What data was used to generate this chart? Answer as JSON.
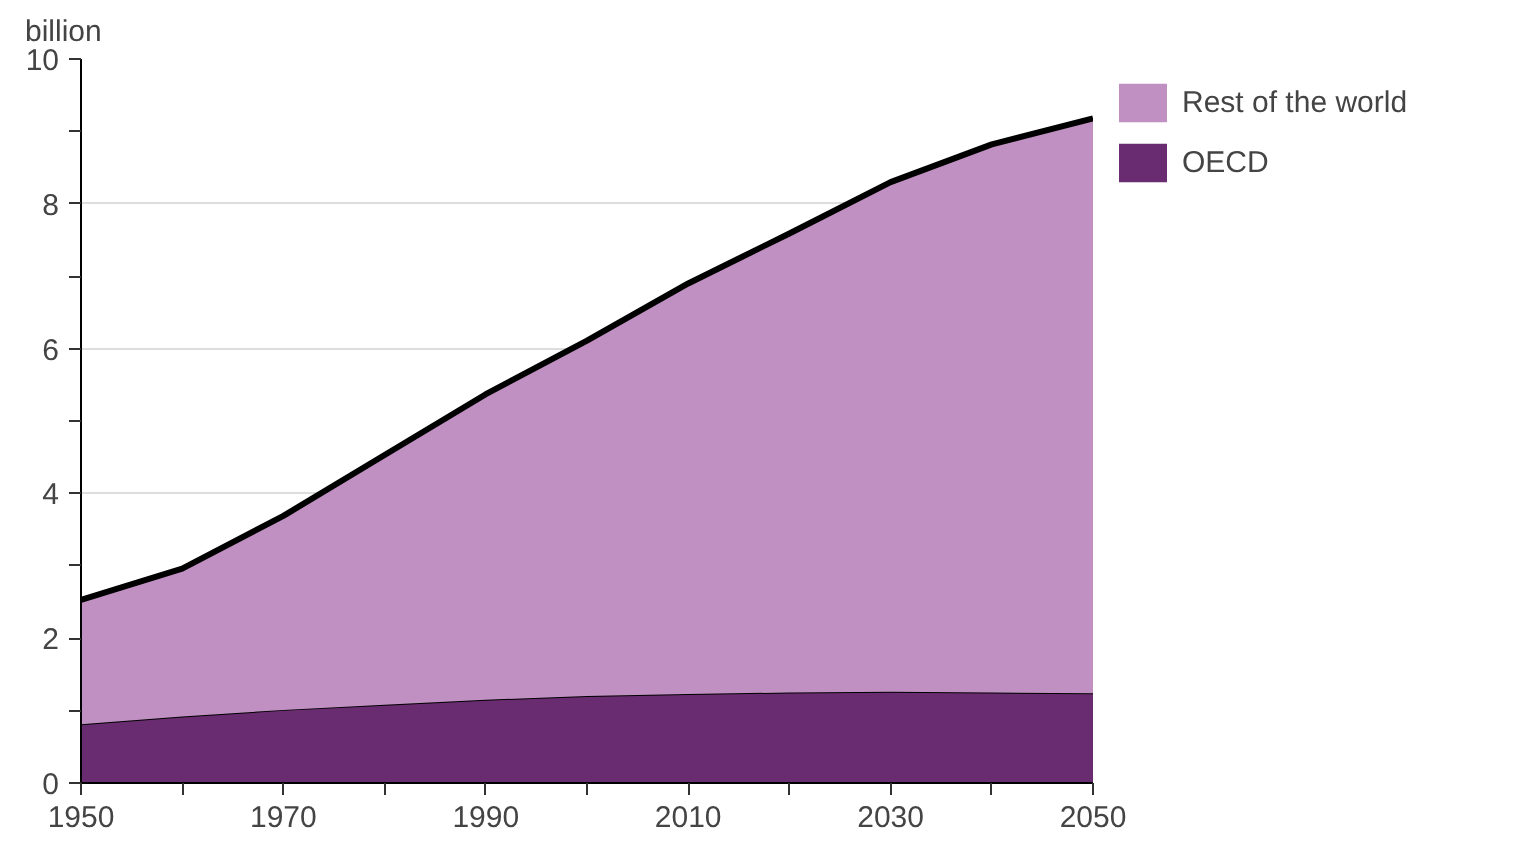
{
  "chart_data": {
    "type": "area",
    "stacked": true,
    "ylabel": "billion",
    "x": [
      1950,
      1960,
      1970,
      1980,
      1990,
      2000,
      2010,
      2020,
      2030,
      2040,
      2050
    ],
    "series": [
      {
        "name": "OECD",
        "color": "#6a2c70",
        "values": [
          0.81,
          0.92,
          1.01,
          1.08,
          1.15,
          1.2,
          1.23,
          1.25,
          1.26,
          1.25,
          1.24
        ]
      },
      {
        "name": "Rest of the world",
        "color": "#c090c2",
        "values": [
          1.72,
          2.04,
          2.68,
          3.45,
          4.22,
          4.91,
          5.67,
          6.34,
          7.04,
          7.57,
          7.94
        ]
      }
    ],
    "xlim": [
      1950,
      2050
    ],
    "xticks": [
      1950,
      {
        "value": 1960,
        "label": null
      },
      1970,
      {
        "value": 1980,
        "label": null
      },
      1990,
      {
        "value": 2000,
        "label": null
      },
      2010,
      {
        "value": 2020,
        "label": null
      },
      2030,
      {
        "value": 2040,
        "label": null
      },
      2050
    ],
    "ylim": [
      0,
      10
    ],
    "yticks": [
      0,
      {
        "value": 1,
        "label": null
      },
      2,
      {
        "value": 3,
        "label": null
      },
      4,
      {
        "value": 5,
        "label": null
      },
      6,
      {
        "value": 7,
        "label": null
      },
      8,
      {
        "value": 9,
        "label": null
      },
      10
    ],
    "grid": "y",
    "legend": "top right"
  }
}
